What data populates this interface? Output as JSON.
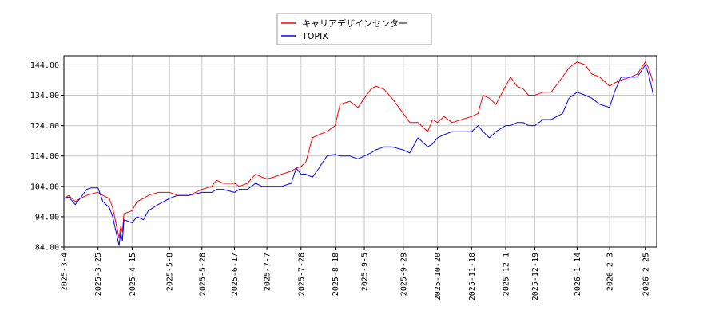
{
  "chart_data": {
    "type": "line",
    "title": "",
    "xlabel": "",
    "ylabel": "",
    "ylim": [
      84,
      147
    ],
    "yticks": [
      84,
      94,
      104,
      114,
      124,
      134,
      144
    ],
    "ytick_labels": [
      "84.00",
      "94.00",
      "104.00",
      "114.00",
      "124.00",
      "134.00",
      "144.00"
    ],
    "x_range": [
      "2025-03-04",
      "2026-03-04"
    ],
    "xticks": [
      "2025-03-04",
      "2025-03-25",
      "2025-04-15",
      "2025-05-08",
      "2025-05-28",
      "2025-06-17",
      "2025-07-07",
      "2025-07-28",
      "2025-08-18",
      "2025-09-05",
      "2025-09-29",
      "2025-10-20",
      "2025-11-10",
      "2025-12-01",
      "2025-12-19",
      "2026-01-14",
      "2026-02-03",
      "2026-02-25"
    ],
    "xtick_labels": [
      "2025-3-4",
      "2025-3-25",
      "2025-4-15",
      "2025-5-8",
      "2025-5-28",
      "2025-6-17",
      "2025-7-7",
      "2025-7-28",
      "2025-8-18",
      "2025-9-5",
      "2025-9-29",
      "2025-10-20",
      "2025-11-10",
      "2025-12-1",
      "2025-12-19",
      "2026-1-14",
      "2026-2-3",
      "2026-2-25"
    ],
    "grid": true,
    "legend_position": "top-center",
    "series": [
      {
        "name": "キャリアデザインセンター",
        "color": "#ff0000",
        "points": [
          [
            "2025-03-04",
            100
          ],
          [
            "2025-03-07",
            101
          ],
          [
            "2025-03-11",
            99
          ],
          [
            "2025-03-14",
            100
          ],
          [
            "2025-03-18",
            101
          ],
          [
            "2025-03-21",
            101.5
          ],
          [
            "2025-03-25",
            102
          ],
          [
            "2025-03-28",
            101
          ],
          [
            "2025-04-01",
            100
          ],
          [
            "2025-04-03",
            97
          ],
          [
            "2025-04-07",
            87
          ],
          [
            "2025-04-08",
            91
          ],
          [
            "2025-04-09",
            89
          ],
          [
            "2025-04-10",
            95
          ],
          [
            "2025-04-15",
            96
          ],
          [
            "2025-04-18",
            99
          ],
          [
            "2025-04-22",
            100
          ],
          [
            "2025-04-25",
            101
          ],
          [
            "2025-05-01",
            102
          ],
          [
            "2025-05-08",
            102
          ],
          [
            "2025-05-13",
            101
          ],
          [
            "2025-05-20",
            101
          ],
          [
            "2025-05-28",
            103
          ],
          [
            "2025-06-03",
            104
          ],
          [
            "2025-06-06",
            106
          ],
          [
            "2025-06-10",
            105
          ],
          [
            "2025-06-17",
            105
          ],
          [
            "2025-06-20",
            104
          ],
          [
            "2025-06-25",
            105
          ],
          [
            "2025-06-30",
            108
          ],
          [
            "2025-07-04",
            107
          ],
          [
            "2025-07-07",
            106.5
          ],
          [
            "2025-07-11",
            107
          ],
          [
            "2025-07-16",
            108
          ],
          [
            "2025-07-22",
            109
          ],
          [
            "2025-07-25",
            110
          ],
          [
            "2025-07-28",
            110.5
          ],
          [
            "2025-07-31",
            112
          ],
          [
            "2025-08-04",
            120
          ],
          [
            "2025-08-08",
            121
          ],
          [
            "2025-08-13",
            122
          ],
          [
            "2025-08-18",
            124
          ],
          [
            "2025-08-21",
            131
          ],
          [
            "2025-08-27",
            132
          ],
          [
            "2025-09-01",
            130
          ],
          [
            "2025-09-05",
            133
          ],
          [
            "2025-09-09",
            136
          ],
          [
            "2025-09-12",
            137
          ],
          [
            "2025-09-17",
            136
          ],
          [
            "2025-09-22",
            133
          ],
          [
            "2025-09-29",
            128
          ],
          [
            "2025-10-03",
            125
          ],
          [
            "2025-10-08",
            125
          ],
          [
            "2025-10-14",
            122
          ],
          [
            "2025-10-17",
            126
          ],
          [
            "2025-10-20",
            125
          ],
          [
            "2025-10-24",
            127
          ],
          [
            "2025-10-29",
            125
          ],
          [
            "2025-11-04",
            126
          ],
          [
            "2025-11-10",
            127
          ],
          [
            "2025-11-14",
            128
          ],
          [
            "2025-11-17",
            134
          ],
          [
            "2025-11-21",
            133
          ],
          [
            "2025-11-25",
            131
          ],
          [
            "2025-12-01",
            137
          ],
          [
            "2025-12-04",
            140
          ],
          [
            "2025-12-08",
            137
          ],
          [
            "2025-12-12",
            136
          ],
          [
            "2025-12-15",
            134
          ],
          [
            "2025-12-19",
            134
          ],
          [
            "2025-12-24",
            135
          ],
          [
            "2025-12-29",
            135
          ],
          [
            "2026-01-05",
            140
          ],
          [
            "2026-01-09",
            143
          ],
          [
            "2026-01-14",
            145
          ],
          [
            "2026-01-19",
            144
          ],
          [
            "2026-01-23",
            141
          ],
          [
            "2026-01-28",
            140
          ],
          [
            "2026-02-03",
            137
          ],
          [
            "2026-02-06",
            138
          ],
          [
            "2026-02-10",
            139
          ],
          [
            "2026-02-16",
            140
          ],
          [
            "2026-02-20",
            141
          ],
          [
            "2026-02-25",
            145
          ],
          [
            "2026-02-27",
            143
          ],
          [
            "2026-03-02",
            138
          ]
        ]
      },
      {
        "name": "TOPIX",
        "color": "#0000ff",
        "points": [
          [
            "2025-03-04",
            100
          ],
          [
            "2025-03-07",
            100.5
          ],
          [
            "2025-03-11",
            98
          ],
          [
            "2025-03-14",
            100
          ],
          [
            "2025-03-18",
            103
          ],
          [
            "2025-03-21",
            103.5
          ],
          [
            "2025-03-25",
            103.5
          ],
          [
            "2025-03-28",
            99
          ],
          [
            "2025-04-01",
            97
          ],
          [
            "2025-04-03",
            94
          ],
          [
            "2025-04-07",
            84.5
          ],
          [
            "2025-04-08",
            89
          ],
          [
            "2025-04-09",
            86
          ],
          [
            "2025-04-10",
            93
          ],
          [
            "2025-04-15",
            92
          ],
          [
            "2025-04-18",
            94
          ],
          [
            "2025-04-22",
            93
          ],
          [
            "2025-04-25",
            96
          ],
          [
            "2025-05-01",
            98
          ],
          [
            "2025-05-08",
            100
          ],
          [
            "2025-05-13",
            101
          ],
          [
            "2025-05-20",
            101
          ],
          [
            "2025-05-28",
            102
          ],
          [
            "2025-06-03",
            102
          ],
          [
            "2025-06-06",
            103
          ],
          [
            "2025-06-10",
            103
          ],
          [
            "2025-06-17",
            102
          ],
          [
            "2025-06-20",
            103
          ],
          [
            "2025-06-25",
            103
          ],
          [
            "2025-06-30",
            105
          ],
          [
            "2025-07-04",
            104
          ],
          [
            "2025-07-07",
            104
          ],
          [
            "2025-07-11",
            104
          ],
          [
            "2025-07-16",
            104
          ],
          [
            "2025-07-22",
            105
          ],
          [
            "2025-07-25",
            110
          ],
          [
            "2025-07-28",
            108
          ],
          [
            "2025-07-31",
            108
          ],
          [
            "2025-08-04",
            107
          ],
          [
            "2025-08-08",
            110
          ],
          [
            "2025-08-13",
            114
          ],
          [
            "2025-08-18",
            114.5
          ],
          [
            "2025-08-21",
            114
          ],
          [
            "2025-08-27",
            114
          ],
          [
            "2025-09-01",
            113
          ],
          [
            "2025-09-05",
            114
          ],
          [
            "2025-09-09",
            115
          ],
          [
            "2025-09-12",
            116
          ],
          [
            "2025-09-17",
            117
          ],
          [
            "2025-09-22",
            117
          ],
          [
            "2025-09-29",
            116
          ],
          [
            "2025-10-03",
            115
          ],
          [
            "2025-10-08",
            120
          ],
          [
            "2025-10-14",
            117
          ],
          [
            "2025-10-17",
            118
          ],
          [
            "2025-10-20",
            120
          ],
          [
            "2025-10-24",
            121
          ],
          [
            "2025-10-29",
            122
          ],
          [
            "2025-11-04",
            122
          ],
          [
            "2025-11-10",
            122
          ],
          [
            "2025-11-14",
            124
          ],
          [
            "2025-11-17",
            122
          ],
          [
            "2025-11-21",
            120
          ],
          [
            "2025-11-25",
            122
          ],
          [
            "2025-12-01",
            124
          ],
          [
            "2025-12-04",
            124
          ],
          [
            "2025-12-08",
            125
          ],
          [
            "2025-12-12",
            125
          ],
          [
            "2025-12-15",
            124
          ],
          [
            "2025-12-19",
            124
          ],
          [
            "2025-12-24",
            126
          ],
          [
            "2025-12-29",
            126
          ],
          [
            "2026-01-05",
            128
          ],
          [
            "2026-01-09",
            133
          ],
          [
            "2026-01-14",
            135
          ],
          [
            "2026-01-19",
            134
          ],
          [
            "2026-01-23",
            133
          ],
          [
            "2026-01-28",
            131
          ],
          [
            "2026-02-03",
            130
          ],
          [
            "2026-02-06",
            135
          ],
          [
            "2026-02-10",
            140
          ],
          [
            "2026-02-16",
            140
          ],
          [
            "2026-02-20",
            140
          ],
          [
            "2026-02-25",
            144
          ],
          [
            "2026-02-27",
            141
          ],
          [
            "2026-03-02",
            134
          ]
        ]
      }
    ]
  }
}
